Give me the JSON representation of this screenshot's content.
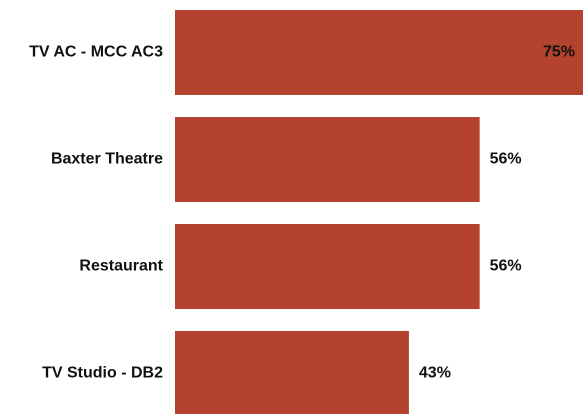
{
  "chart_data": {
    "type": "bar",
    "orientation": "horizontal",
    "categories": [
      "TV AC - MCC AC3",
      "Baxter Theatre",
      "Restaurant",
      "TV Studio - DB2"
    ],
    "values": [
      75,
      56,
      56,
      43
    ],
    "value_labels": [
      "75%",
      "56%",
      "56%",
      "43%"
    ],
    "color": "#b3432e",
    "xlim": [
      0,
      75
    ]
  }
}
